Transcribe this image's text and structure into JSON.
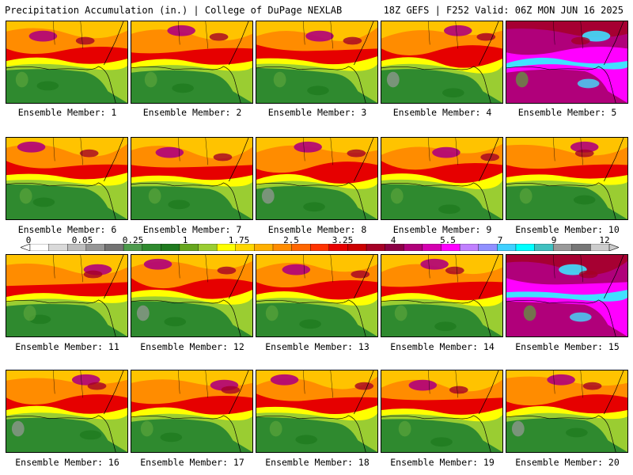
{
  "header": {
    "left": "Precipitation Accumulation (in.) | College of DuPage NEXLAB",
    "right": "18Z GEFS | F252 Valid: 06Z MON JUN 16 2025"
  },
  "caption_prefix": "Ensemble Member: ",
  "members": [
    {
      "label": "Ensemble Member: 1"
    },
    {
      "label": "Ensemble Member: 2"
    },
    {
      "label": "Ensemble Member: 3"
    },
    {
      "label": "Ensemble Member: 4"
    },
    {
      "label": "Ensemble Member: 5"
    },
    {
      "label": "Ensemble Member: 6"
    },
    {
      "label": "Ensemble Member: 7"
    },
    {
      "label": "Ensemble Member: 8"
    },
    {
      "label": "Ensemble Member: 9"
    },
    {
      "label": "Ensemble Member: 10"
    },
    {
      "label": "Ensemble Member: 11"
    },
    {
      "label": "Ensemble Member: 12"
    },
    {
      "label": "Ensemble Member: 13"
    },
    {
      "label": "Ensemble Member: 14"
    },
    {
      "label": "Ensemble Member: 15"
    },
    {
      "label": "Ensemble Member: 16"
    },
    {
      "label": "Ensemble Member: 17"
    },
    {
      "label": "Ensemble Member: 18"
    },
    {
      "label": "Ensemble Member: 19"
    },
    {
      "label": "Ensemble Member: 20"
    }
  ],
  "colorbar": {
    "tick_labels": [
      "0",
      "0.05",
      "0.25",
      "1",
      "1.75",
      "2.5",
      "3.25",
      "4",
      "5.5",
      "7",
      "9",
      "12"
    ],
    "colors": [
      "#ffffff",
      "#d9d9d9",
      "#bdbdbd",
      "#969696",
      "#737373",
      "#4d9a4d",
      "#2f8a2f",
      "#1f7a1f",
      "#66a61e",
      "#9acd32",
      "#ffff00",
      "#ffd700",
      "#ffb000",
      "#ff8c00",
      "#ff6600",
      "#ff3300",
      "#e60000",
      "#cc0000",
      "#a50026",
      "#8b0045",
      "#b0007a",
      "#d400b0",
      "#ff00ff",
      "#c080ff",
      "#9090ff",
      "#40d0ff",
      "#00ffff",
      "#40c0c0",
      "#999999",
      "#777777",
      "#cccccc"
    ]
  }
}
